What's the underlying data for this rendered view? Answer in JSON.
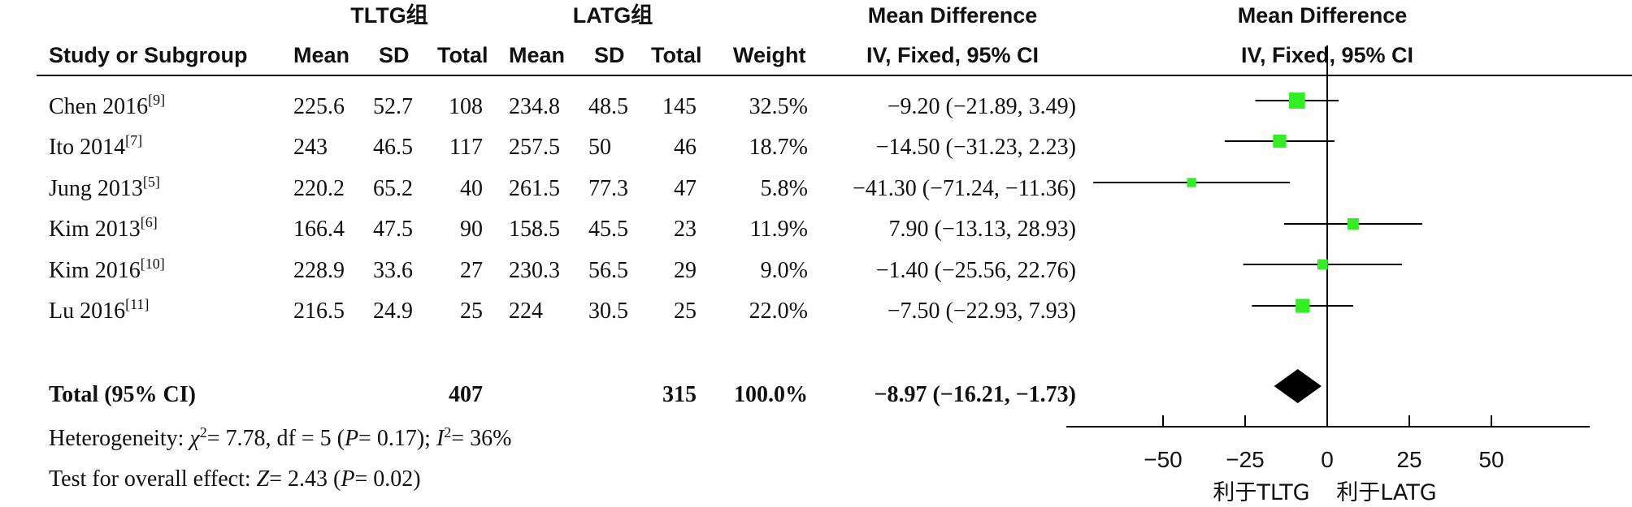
{
  "header": {
    "group1": "TLTG组",
    "group2": "LATG组",
    "md_title": "Mean Difference",
    "md_sub": "IV, Fixed, 95% CI",
    "plot_title": "Mean Difference",
    "plot_sub": "IV, Fixed, 95% CI",
    "study_col": "Study or Subgroup",
    "mean1": "Mean",
    "sd1": "SD",
    "total1": "Total",
    "mean2": "Mean",
    "sd2": "SD",
    "total2": "Total",
    "weight": "Weight"
  },
  "studies": [
    {
      "name": "Chen 2016",
      "ref": "[9]",
      "mean1": "225.6",
      "sd1": "52.7",
      "total1": "108",
      "mean2": "234.8",
      "sd2": "48.5",
      "total2": "145",
      "weight": "32.5%",
      "ci_text": "−9.20 (−21.89, 3.49)"
    },
    {
      "name": "Ito 2014",
      "ref": "[7]",
      "mean1": "243",
      "sd1": "46.5",
      "total1": "117",
      "mean2": "257.5",
      "sd2": "50",
      "total2": "46",
      "weight": "18.7%",
      "ci_text": "−14.50 (−31.23, 2.23)"
    },
    {
      "name": "Jung 2013",
      "ref": "[5]",
      "mean1": "220.2",
      "sd1": "65.2",
      "total1": "40",
      "mean2": "261.5",
      "sd2": "77.3",
      "total2": "47",
      "weight": "5.8%",
      "ci_text": "−41.30 (−71.24, −11.36)"
    },
    {
      "name": "Kim 2013",
      "ref": "[6]",
      "mean1": "166.4",
      "sd1": "47.5",
      "total1": "90",
      "mean2": "158.5",
      "sd2": "45.5",
      "total2": "23",
      "weight": "11.9%",
      "ci_text": "7.90 (−13.13, 28.93)"
    },
    {
      "name": "Kim 2016",
      "ref": "[10]",
      "mean1": "228.9",
      "sd1": "33.6",
      "total1": "27",
      "mean2": "230.3",
      "sd2": "56.5",
      "total2": "29",
      "weight": "9.0%",
      "ci_text": "−1.40 (−25.56, 22.76)"
    },
    {
      "name": "Lu 2016",
      "ref": "[11]",
      "mean1": "216.5",
      "sd1": "24.9",
      "total1": "25",
      "mean2": "224",
      "sd2": "30.5",
      "total2": "25",
      "weight": "22.0%",
      "ci_text": "−7.50 (−22.93, 7.93)"
    }
  ],
  "total": {
    "label": "Total (95% CI)",
    "total1": "407",
    "total2": "315",
    "weight": "100.0%",
    "ci_text": "−8.97 (−16.21, −1.73)"
  },
  "footer": {
    "het_prefix": "Heterogeneity: ",
    "chi": "χ",
    "het_part2": "= 7.78, df = 5 (",
    "p": "P",
    "het_part3": "= 0.17); ",
    "i": "I",
    "het_part4": "= 36%",
    "effect_prefix": "Test for overall effect: ",
    "z": "Z",
    "effect_part2": "= 2.43 (",
    "effect_p": "P",
    "effect_part3": "= 0.02)"
  },
  "axis": {
    "favors_left": "利于TLTG",
    "favors_right": "利于LATG"
  },
  "chart_data": {
    "type": "forest",
    "x_ticks": [
      -50,
      -25,
      0,
      25,
      50
    ],
    "tick_labels": [
      "−50",
      "−25",
      "0",
      "25",
      "50"
    ],
    "xlim": [
      -75,
      80
    ],
    "studies": [
      {
        "label": "Chen 2016",
        "estimate": -9.2,
        "lower": -21.89,
        "upper": 3.49,
        "weight": 32.5
      },
      {
        "label": "Ito 2014",
        "estimate": -14.5,
        "lower": -31.23,
        "upper": 2.23,
        "weight": 18.7
      },
      {
        "label": "Jung 2013",
        "estimate": -41.3,
        "lower": -71.24,
        "upper": -11.36,
        "weight": 5.8
      },
      {
        "label": "Kim 2013",
        "estimate": 7.9,
        "lower": -13.13,
        "upper": 28.93,
        "weight": 11.9
      },
      {
        "label": "Kim 2016",
        "estimate": -1.4,
        "lower": -25.56,
        "upper": 22.76,
        "weight": 9.0
      },
      {
        "label": "Lu 2016",
        "estimate": -7.5,
        "lower": -22.93,
        "upper": 7.93,
        "weight": 22.0
      }
    ],
    "pooled": {
      "estimate": -8.97,
      "lower": -16.21,
      "upper": -1.73
    },
    "colors": {
      "square": "#33ee22",
      "diamond": "#000000",
      "line": "#000000"
    }
  }
}
